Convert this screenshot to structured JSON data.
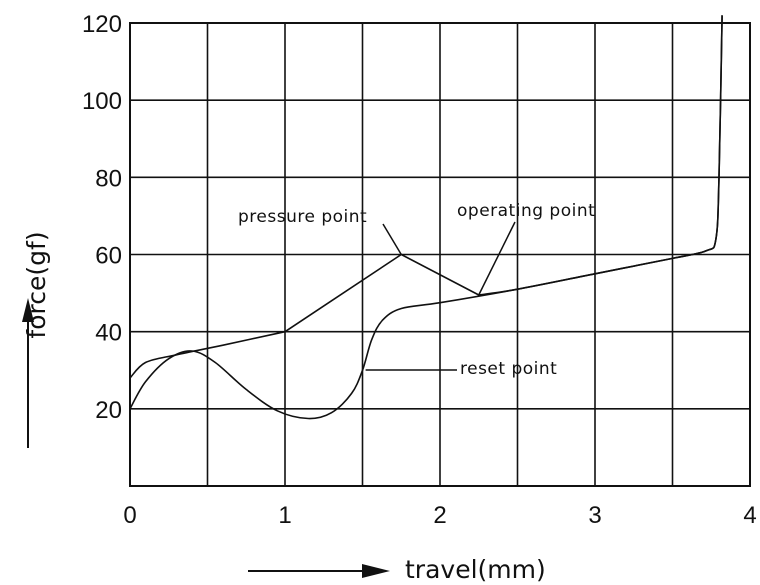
{
  "chart_data": {
    "type": "line",
    "xlabel": "travel(mm)",
    "ylabel": "force(gf)",
    "xlim": [
      0,
      4
    ],
    "ylim": [
      0,
      120
    ],
    "x_ticks": [
      "0",
      "1",
      "2",
      "3",
      "4"
    ],
    "y_ticks": [
      "20",
      "40",
      "60",
      "80",
      "100",
      "120"
    ],
    "grid": true,
    "series": [
      {
        "points": [
          [
            0,
            20
          ],
          [
            0.1,
            27
          ],
          [
            0.25,
            33
          ],
          [
            0.4,
            35
          ],
          [
            0.55,
            32
          ],
          [
            0.75,
            25
          ],
          [
            0.95,
            19.5
          ],
          [
            1.15,
            17.5
          ],
          [
            1.3,
            19
          ],
          [
            1.43,
            24
          ],
          [
            1.5,
            30
          ],
          [
            1.56,
            38
          ],
          [
            1.63,
            43
          ],
          [
            1.75,
            46
          ],
          [
            2.0,
            47.5
          ],
          [
            2.5,
            51
          ],
          [
            3.0,
            55
          ],
          [
            3.5,
            59
          ],
          [
            3.72,
            61
          ],
          [
            3.78,
            64
          ],
          [
            3.8,
            80
          ],
          [
            3.82,
            122
          ]
        ]
      },
      {
        "points": [
          [
            0,
            28
          ],
          [
            0.1,
            32
          ],
          [
            0.3,
            34
          ],
          [
            0.6,
            36.5
          ],
          [
            1.0,
            40
          ],
          [
            1.3,
            48
          ],
          [
            1.75,
            60
          ],
          [
            2.25,
            49.5
          ],
          [
            2.5,
            51
          ],
          [
            3.0,
            55
          ],
          [
            3.5,
            59
          ],
          [
            3.72,
            61
          ],
          [
            3.78,
            64
          ],
          [
            3.8,
            80
          ],
          [
            3.82,
            122
          ]
        ]
      }
    ],
    "annotations": [
      {
        "text": "pressure  point",
        "x": 1.75,
        "y": 60
      },
      {
        "text": "operating  point",
        "x": 2.25,
        "y": 49.5
      },
      {
        "text": "reset  point",
        "x": 1.52,
        "y": 30
      }
    ]
  }
}
